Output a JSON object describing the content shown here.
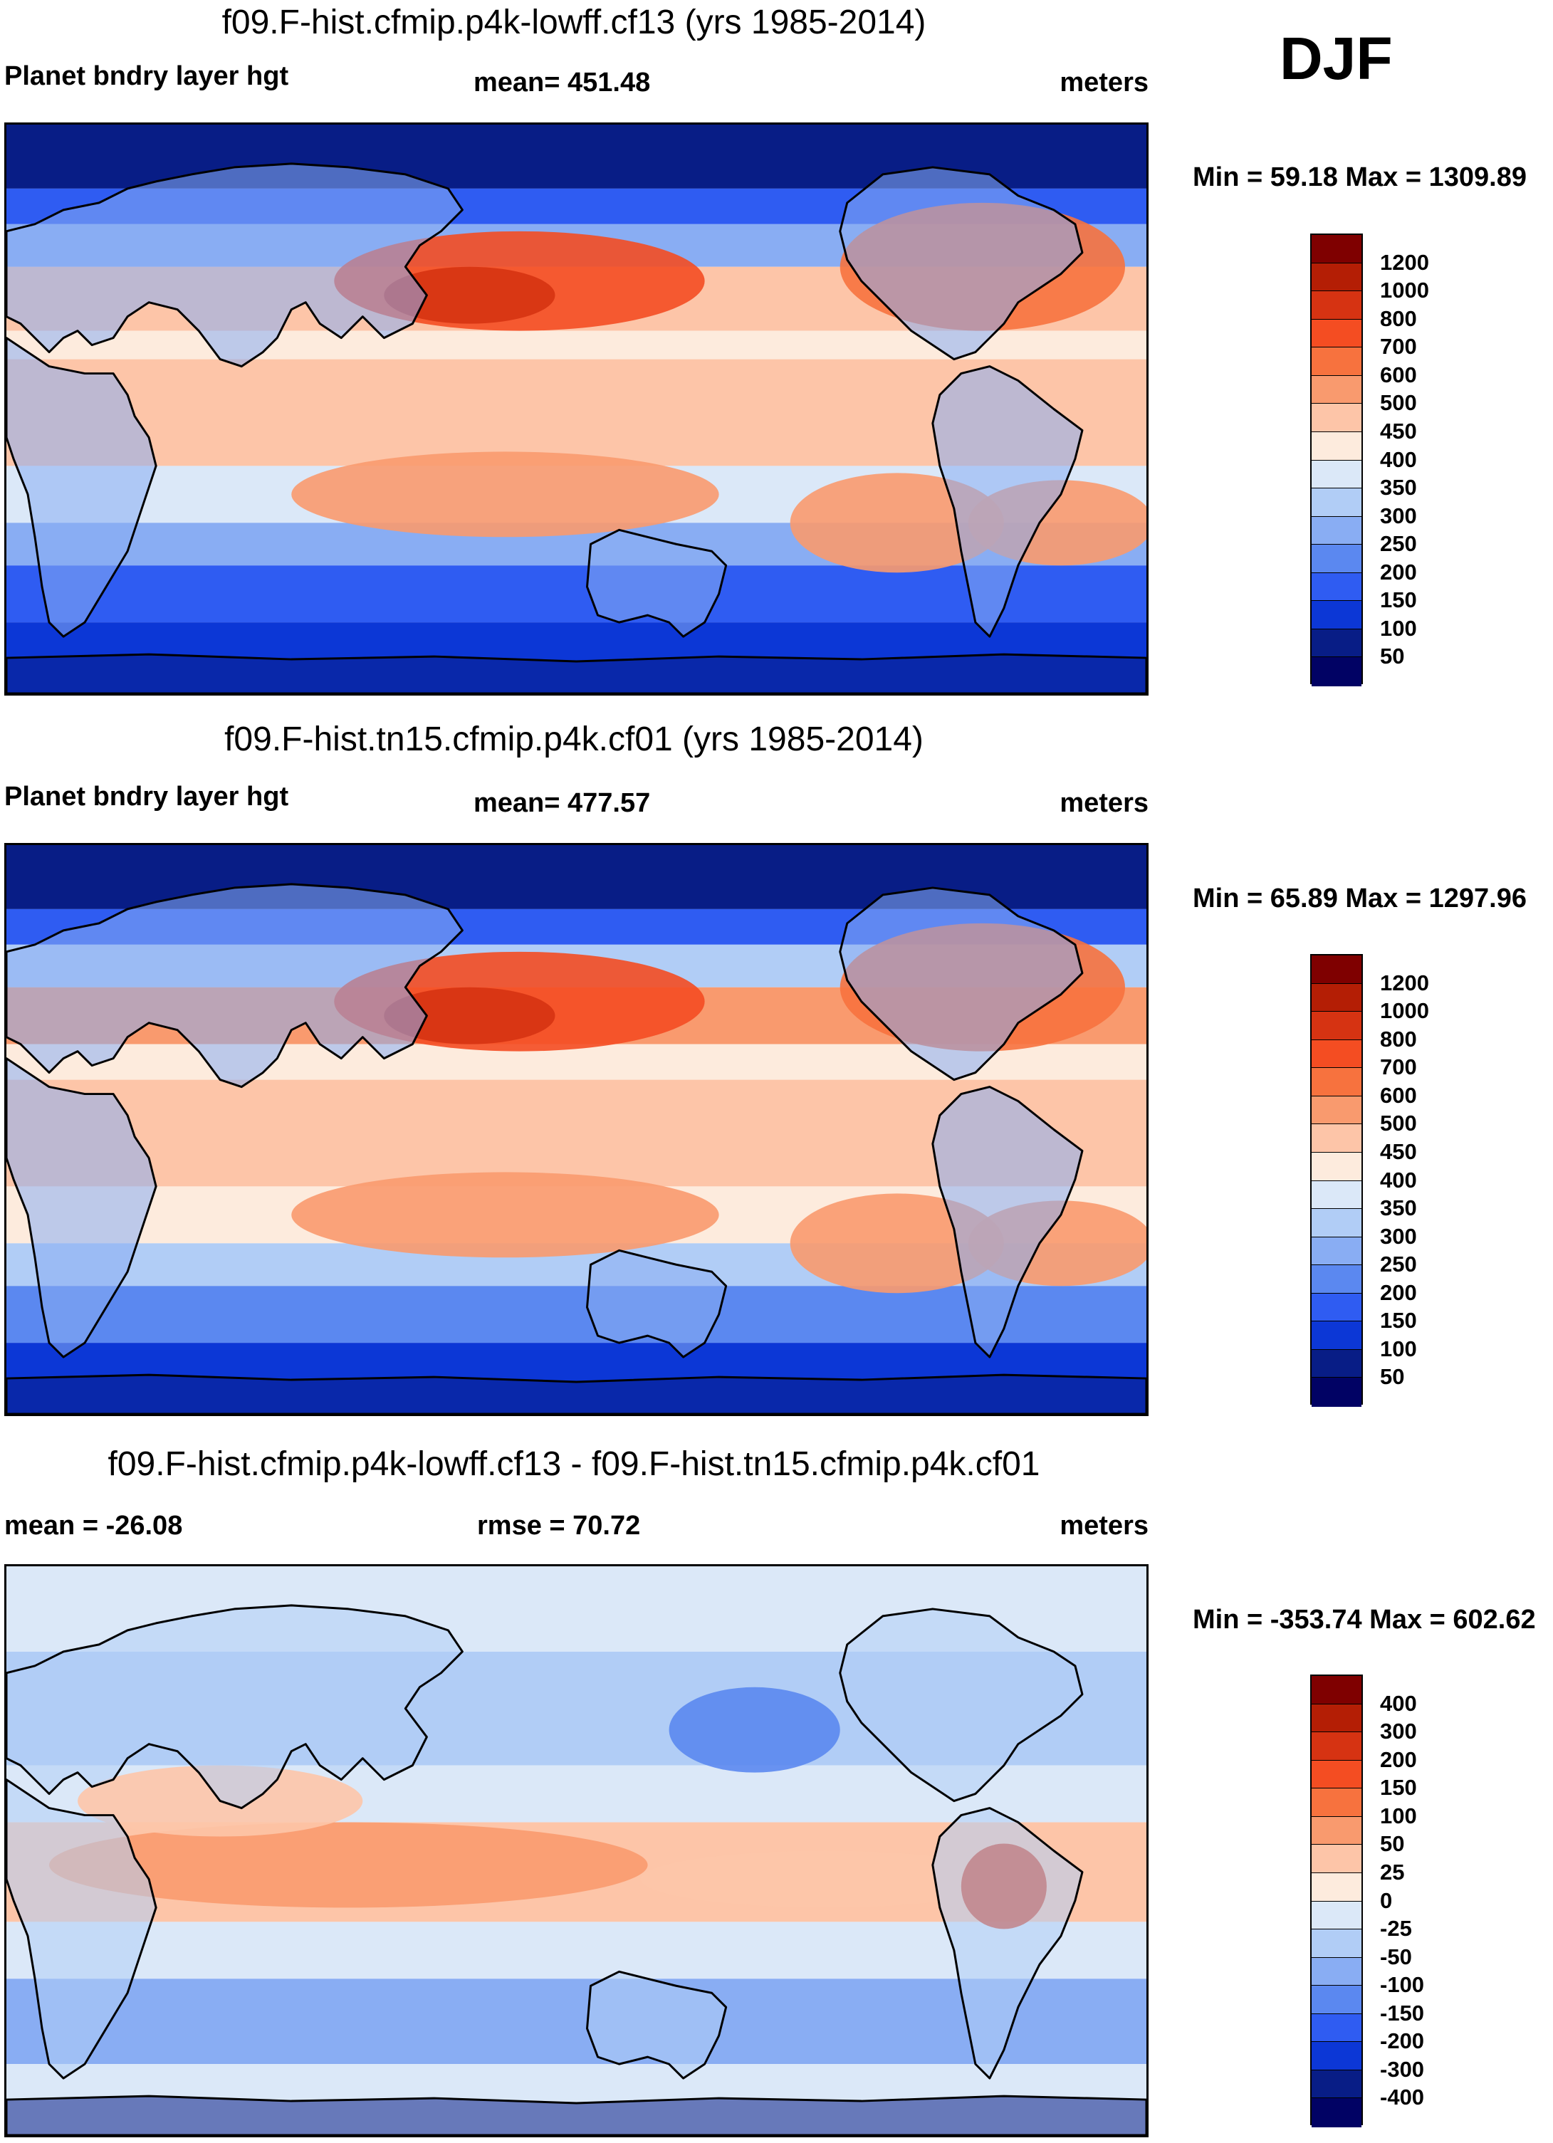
{
  "season": "DJF",
  "panels": [
    {
      "id": "model1",
      "title": "f09.F-hist.cfmip.p4k-lowff.cf13 (yrs 1985-2014)",
      "left_label": "Planet bndry layer hgt",
      "center_label": "mean= 451.48",
      "units": "meters",
      "minmax": "Min =  59.18 Max = 1309.89"
    },
    {
      "id": "model2",
      "title": "f09.F-hist.tn15.cfmip.p4k.cf01 (yrs 1985-2014)",
      "left_label": "Planet bndry layer hgt",
      "center_label": "mean= 477.57",
      "units": "meters",
      "minmax": "Min =  65.89 Max = 1297.96"
    },
    {
      "id": "difference",
      "title": "f09.F-hist.cfmip.p4k-lowff.cf13 - f09.F-hist.tn15.cfmip.p4k.cf01",
      "left_label": "mean = -26.08",
      "center_label": "rmse =  70.72",
      "units": "meters",
      "minmax": "Min = -353.74 Max = 602.62"
    }
  ],
  "chart_data": [
    {
      "type": "heatmap",
      "title": "f09.F-hist.cfmip.p4k-lowff.cf13 (yrs 1985-2014)",
      "variable": "Planet bndry layer hgt",
      "units": "meters",
      "mean": 451.48,
      "min": 59.18,
      "max": 1309.89,
      "levels": [
        "1200",
        "1000",
        "800",
        "700",
        "600",
        "500",
        "450",
        "400",
        "350",
        "300",
        "250",
        "200",
        "150",
        "100",
        "50"
      ],
      "colors": [
        "#7f0000",
        "#b41e05",
        "#d63312",
        "#f44d22",
        "#f7723e",
        "#f99a6e",
        "#fdc5a8",
        "#fdebdd",
        "#dbe8f8",
        "#b1cdf6",
        "#89adf3",
        "#5b88f0",
        "#2f5cf2",
        "#0c37d6",
        "#081d86",
        "#010264"
      ]
    },
    {
      "type": "heatmap",
      "title": "f09.F-hist.tn15.cfmip.p4k.cf01 (yrs 1985-2014)",
      "variable": "Planet bndry layer hgt",
      "units": "meters",
      "mean": 477.57,
      "min": 65.89,
      "max": 1297.96,
      "levels": [
        "1200",
        "1000",
        "800",
        "700",
        "600",
        "500",
        "450",
        "400",
        "350",
        "300",
        "250",
        "200",
        "150",
        "100",
        "50"
      ],
      "colors": [
        "#7f0000",
        "#b41e05",
        "#d63312",
        "#f44d22",
        "#f7723e",
        "#f99a6e",
        "#fdc5a8",
        "#fdebdd",
        "#dbe8f8",
        "#b1cdf6",
        "#89adf3",
        "#5b88f0",
        "#2f5cf2",
        "#0c37d6",
        "#081d86",
        "#010264"
      ]
    },
    {
      "type": "heatmap",
      "title": "f09.F-hist.cfmip.p4k-lowff.cf13 - f09.F-hist.tn15.cfmip.p4k.cf01",
      "variable": "difference",
      "units": "meters",
      "mean": -26.08,
      "rmse": 70.72,
      "min": -353.74,
      "max": 602.62,
      "levels": [
        "400",
        "300",
        "200",
        "150",
        "100",
        "50",
        "25",
        "0",
        "-25",
        "-50",
        "-100",
        "-150",
        "-200",
        "-300",
        "-400"
      ],
      "colors": [
        "#7f0000",
        "#b41e05",
        "#d63312",
        "#f44d22",
        "#f7723e",
        "#f99a6e",
        "#fdc5a8",
        "#fdebdd",
        "#dbe8f8",
        "#b1cdf6",
        "#89adf3",
        "#5b88f0",
        "#2f5cf2",
        "#0c37d6",
        "#081d86",
        "#010264"
      ]
    }
  ]
}
